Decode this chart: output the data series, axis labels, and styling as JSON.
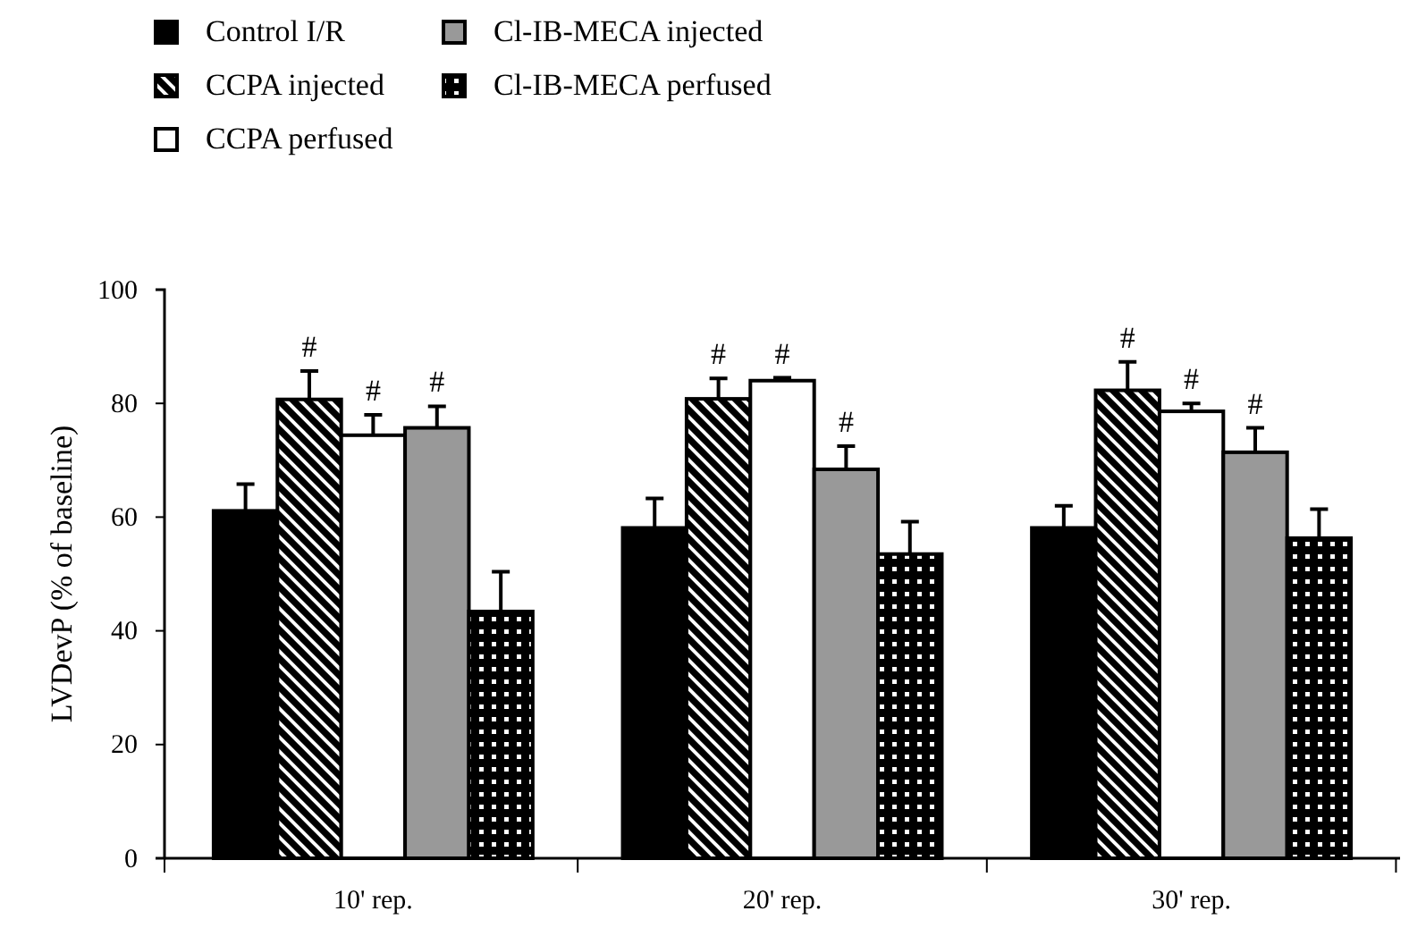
{
  "chart_data": {
    "type": "bar",
    "ylabel": "LVDevP (% of baseline)",
    "categories": [
      "10' rep.",
      "20' rep.",
      "30' rep."
    ],
    "ylim": [
      0,
      100
    ],
    "yticks": [
      0,
      20,
      40,
      60,
      80,
      100
    ],
    "legend": "top left",
    "series": [
      {
        "name": "Control I/R",
        "color": "#000000",
        "values": [
          61.1,
          58.1,
          58.1
        ],
        "errors": [
          4.7,
          5.2,
          3.9
        ]
      },
      {
        "name": "CCPA injected",
        "color": "#000000",
        "values": [
          80.7,
          80.8,
          82.3
        ],
        "errors": [
          5,
          3.6,
          5
        ],
        "value_labels": [
          "#",
          "#",
          "#"
        ]
      },
      {
        "name": "CCPA perfused",
        "color": "#ffffff",
        "values": [
          74.4,
          84,
          78.6
        ],
        "errors": [
          3.6,
          0.5,
          1.4
        ],
        "value_labels": [
          "#",
          "#",
          "#"
        ]
      },
      {
        "name": "Cl-IB-MECA injected",
        "color": "#999999",
        "values": [
          75.7,
          68.4,
          71.4
        ],
        "errors": [
          3.8,
          4.1,
          4.3
        ],
        "value_labels": [
          "#",
          "#",
          "#"
        ]
      },
      {
        "name": "Cl-IB-MECA perfused",
        "color": "#000000",
        "values": [
          43.4,
          53.5,
          56.3
        ],
        "errors": [
          7,
          5.7,
          5.1
        ]
      }
    ]
  }
}
